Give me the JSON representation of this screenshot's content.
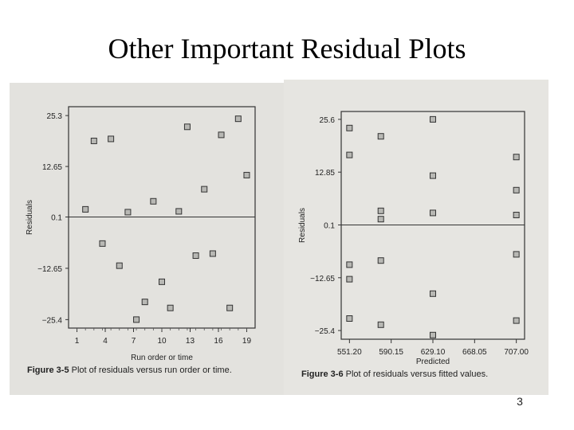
{
  "slide": {
    "title": "Other Important Residual Plots",
    "page_number": "3"
  },
  "chart_data": [
    {
      "type": "scatter",
      "figure_label": "Figure 3-5",
      "caption": "Plot of residuals versus run order or time.",
      "xlabel": "Run order or time",
      "ylabel": "Residuals",
      "x_ticks": [
        "1",
        "4",
        "7",
        "10",
        "13",
        "16",
        "19"
      ],
      "y_ticks": [
        "25.3",
        "12.65",
        "0.1",
        "−12.65",
        "−25.4"
      ],
      "xlim": [
        0,
        20
      ],
      "ylim": [
        -27.5,
        27.5
      ],
      "reference_line_y": 0.1,
      "points": [
        {
          "x": 1,
          "y": 2.0
        },
        {
          "x": 2,
          "y": 19.0
        },
        {
          "x": 3,
          "y": -6.5
        },
        {
          "x": 4,
          "y": 19.5
        },
        {
          "x": 5,
          "y": -12.0
        },
        {
          "x": 6,
          "y": 1.3
        },
        {
          "x": 7,
          "y": -25.4
        },
        {
          "x": 8,
          "y": -21.0
        },
        {
          "x": 9,
          "y": 4.0
        },
        {
          "x": 10,
          "y": -16.0
        },
        {
          "x": 11,
          "y": -22.5
        },
        {
          "x": 12,
          "y": 1.5
        },
        {
          "x": 13,
          "y": 22.5
        },
        {
          "x": 14,
          "y": -9.5
        },
        {
          "x": 15,
          "y": 7.0
        },
        {
          "x": 16,
          "y": -9.0
        },
        {
          "x": 17,
          "y": 20.5
        },
        {
          "x": 18,
          "y": -22.5
        },
        {
          "x": 19,
          "y": 24.5
        },
        {
          "x": 20,
          "y": 10.5
        }
      ]
    },
    {
      "type": "scatter",
      "figure_label": "Figure 3-6",
      "caption": "Plot of residuals versus fitted values.",
      "xlabel": "Predicted",
      "ylabel": "Residuals",
      "x_ticks": [
        "551.20",
        "590.15",
        "629.10",
        "668.05",
        "707.00"
      ],
      "y_ticks": [
        "25.6",
        "12.85",
        "0.1",
        "−12.65",
        "−25.4"
      ],
      "xlim": [
        551.2,
        707.0
      ],
      "ylim": [
        -27.5,
        27.5
      ],
      "reference_line_y": 0.1,
      "points": [
        {
          "x": 551.2,
          "y": 23.5
        },
        {
          "x": 551.2,
          "y": 17.0
        },
        {
          "x": 551.2,
          "y": -9.5
        },
        {
          "x": 551.2,
          "y": -13.0
        },
        {
          "x": 551.2,
          "y": -22.5
        },
        {
          "x": 580.5,
          "y": 21.5
        },
        {
          "x": 580.5,
          "y": 3.5
        },
        {
          "x": 580.5,
          "y": 1.5
        },
        {
          "x": 580.5,
          "y": -8.5
        },
        {
          "x": 580.5,
          "y": -24.0
        },
        {
          "x": 629.1,
          "y": 25.6
        },
        {
          "x": 629.1,
          "y": 12.0
        },
        {
          "x": 629.1,
          "y": 3.0
        },
        {
          "x": 629.1,
          "y": -16.5
        },
        {
          "x": 629.1,
          "y": -26.5
        },
        {
          "x": 707.0,
          "y": 16.5
        },
        {
          "x": 707.0,
          "y": 8.5
        },
        {
          "x": 707.0,
          "y": 2.5
        },
        {
          "x": 707.0,
          "y": -7.0
        },
        {
          "x": 707.0,
          "y": -23.0
        }
      ]
    }
  ]
}
